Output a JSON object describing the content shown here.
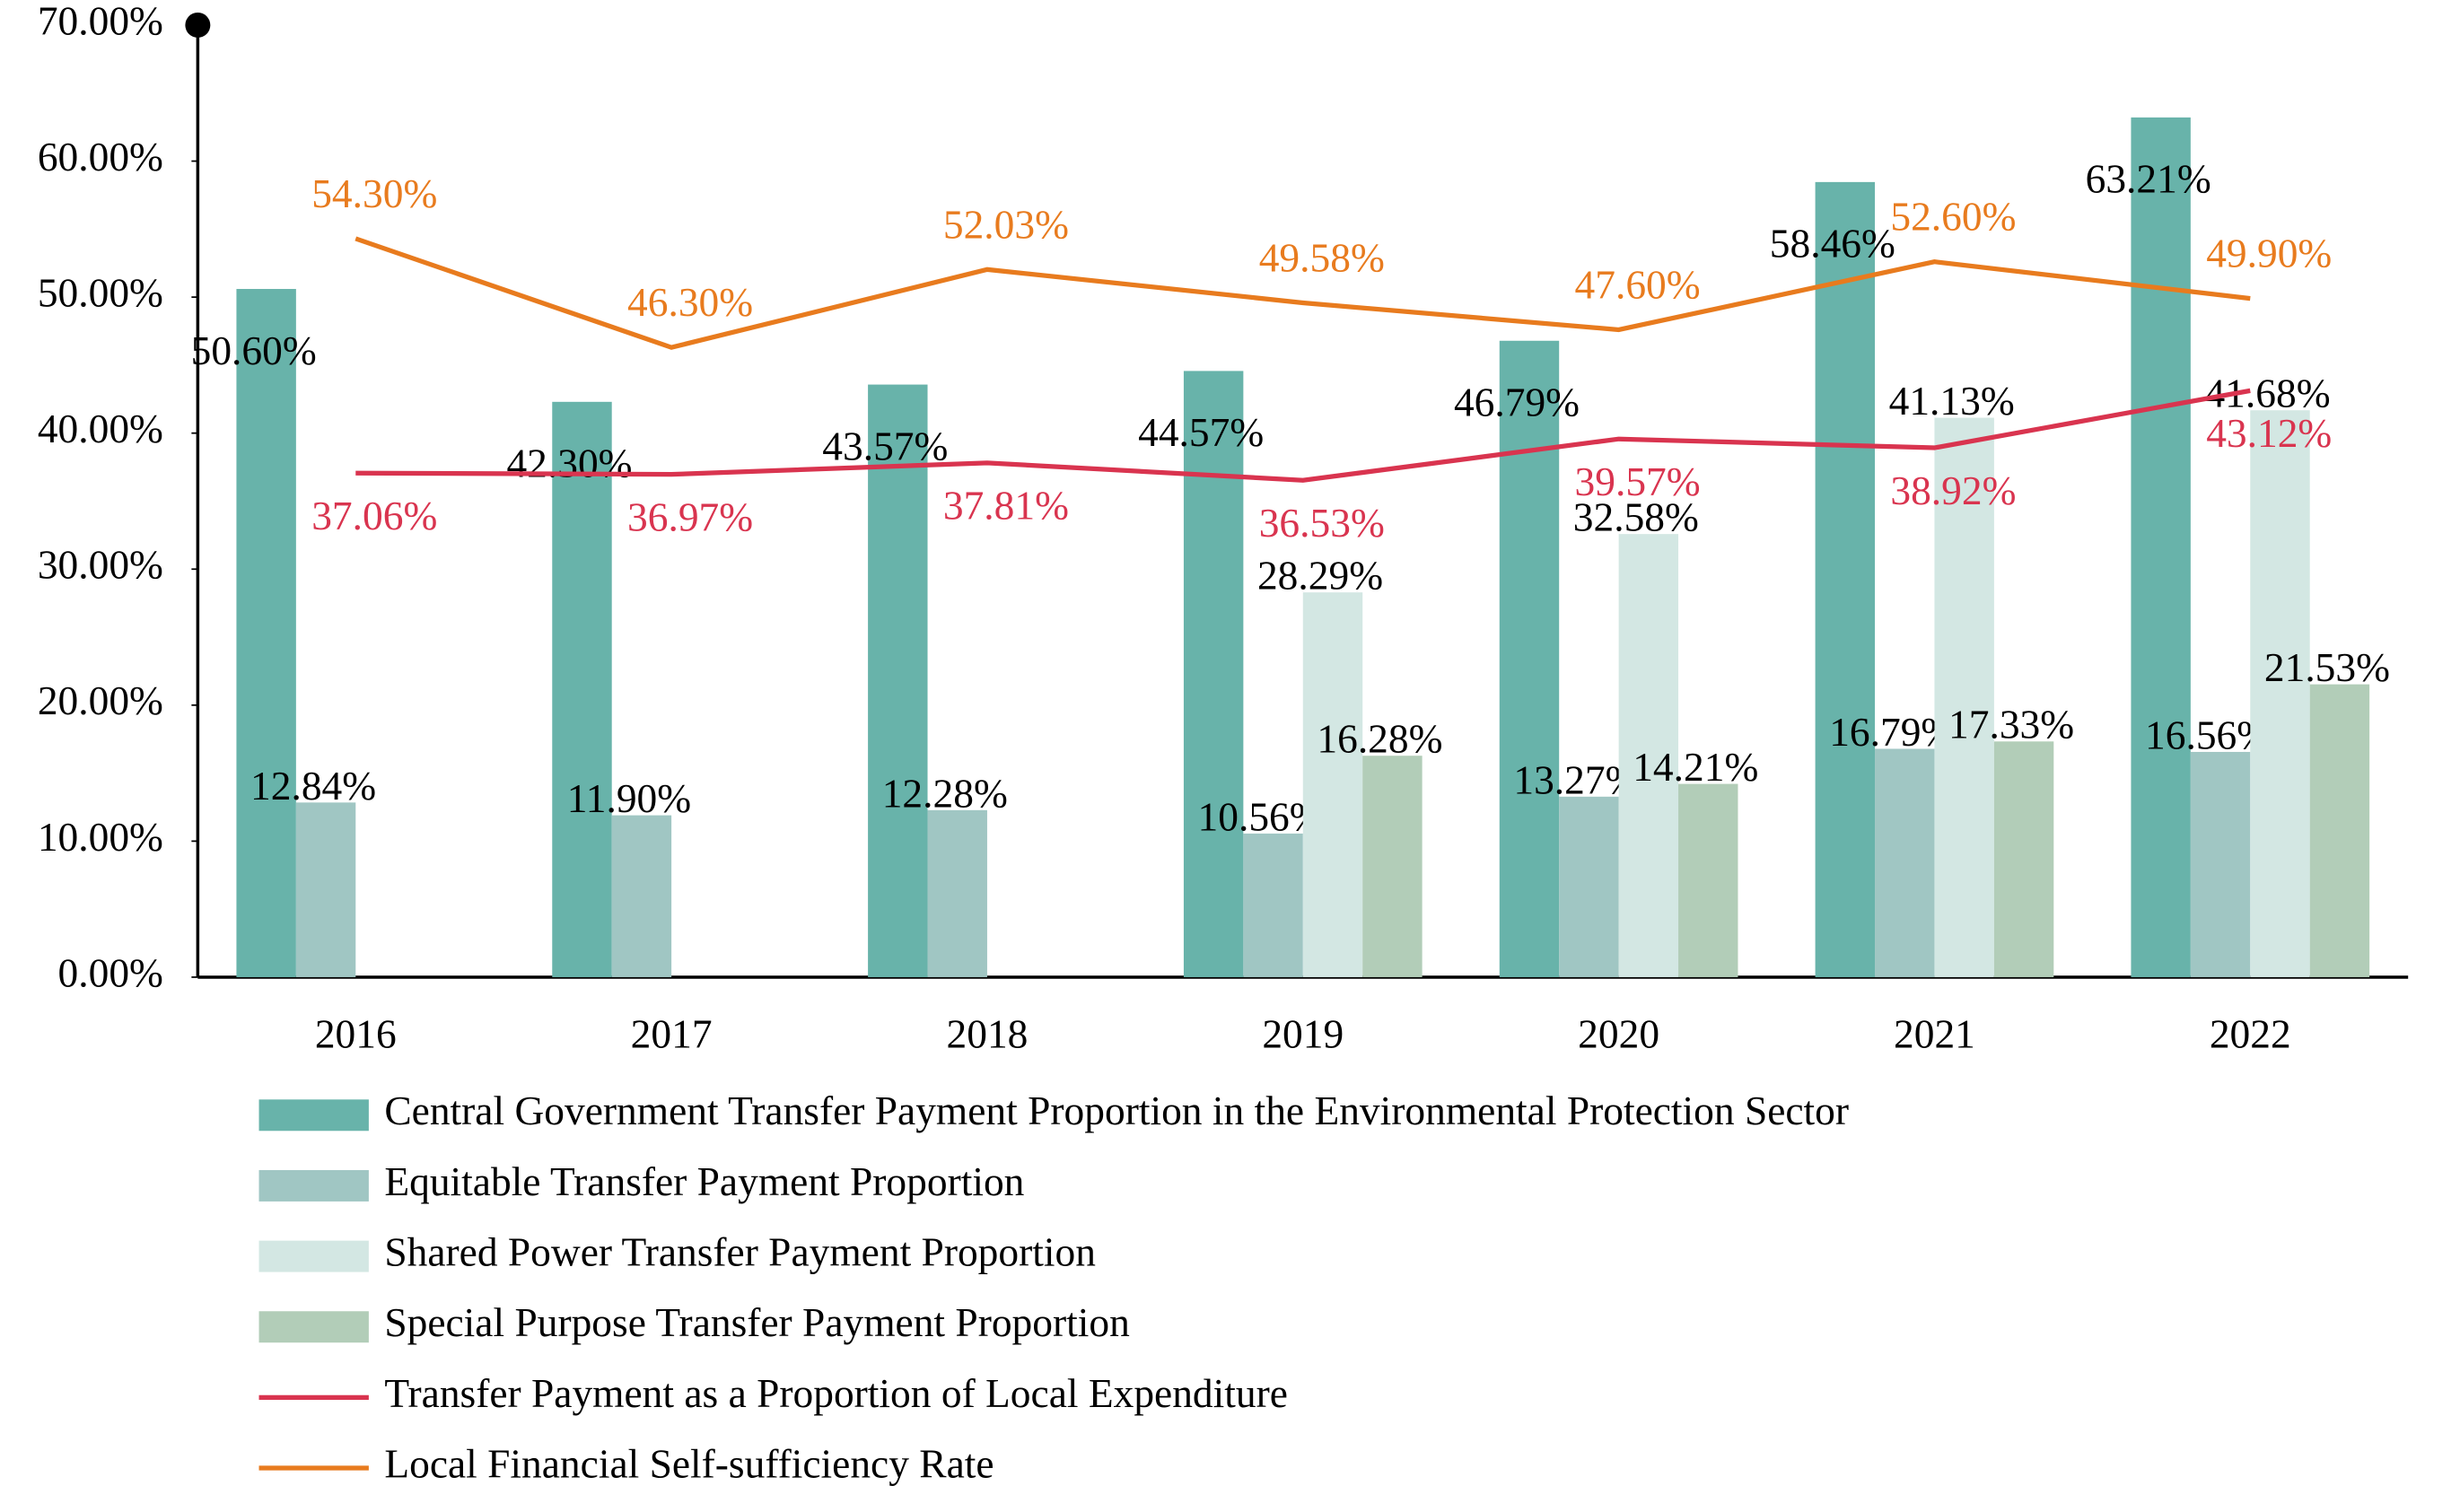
{
  "chart_data": {
    "type": "bar",
    "categories": [
      "2016",
      "2017",
      "2018",
      "2019",
      "2020",
      "2021",
      "2022"
    ],
    "ylim": [
      0,
      70
    ],
    "yticks": [
      {
        "value": 0,
        "label": "0.00%"
      },
      {
        "value": 10,
        "label": "10.00%"
      },
      {
        "value": 20,
        "label": "20.00%"
      },
      {
        "value": 30,
        "label": "30.00%"
      },
      {
        "value": 40,
        "label": "40.00%"
      },
      {
        "value": 50,
        "label": "50.00%"
      },
      {
        "value": 60,
        "label": "60.00%"
      },
      {
        "value": 70,
        "label": "70.00%"
      }
    ],
    "series": [
      {
        "name": "Central Government Transfer Payment Proportion in the Environmental Protection Sector",
        "type": "bar",
        "color": "#68b3aa",
        "values": [
          50.6,
          42.3,
          43.57,
          44.57,
          46.79,
          58.46,
          63.21
        ],
        "value_labels": [
          "50.60%",
          "42.30%",
          "43.57%",
          "44.57%",
          "46.79%",
          "58.46%",
          "63.21%"
        ]
      },
      {
        "name": "Equitable Transfer Payment Proportion",
        "type": "bar",
        "color": "#a0c6c3",
        "values": [
          12.84,
          11.9,
          12.28,
          10.56,
          13.27,
          16.79,
          16.56
        ],
        "value_labels": [
          "12.84%",
          "11.90%",
          "12.28%",
          "10.56%",
          "13.27%",
          "16.79%",
          "16.56%"
        ]
      },
      {
        "name": "Shared Power Transfer Payment Proportion",
        "type": "bar",
        "color": "#d3e7e3",
        "values": [
          null,
          null,
          null,
          28.29,
          32.58,
          41.13,
          41.68
        ],
        "value_labels": [
          null,
          null,
          null,
          "28.29%",
          "32.58%",
          "41.13%",
          "41.68%"
        ]
      },
      {
        "name": "Special Purpose Transfer Payment Proportion",
        "type": "bar",
        "color": "#b2cdb8",
        "values": [
          null,
          null,
          null,
          16.28,
          14.21,
          17.33,
          21.53
        ],
        "value_labels": [
          null,
          null,
          null,
          "16.28%",
          "14.21%",
          "17.33%",
          "21.53%"
        ]
      },
      {
        "name": "Transfer Payment as a Proportion of Local Expenditure",
        "type": "line",
        "color": "#d9344f",
        "values": [
          37.06,
          36.97,
          37.81,
          36.53,
          39.57,
          38.92,
          43.12
        ],
        "value_labels": [
          "37.06%",
          "36.97%",
          "37.81%",
          "36.53%",
          "39.57%",
          "38.92%",
          "43.12%"
        ]
      },
      {
        "name": "Local Financial Self-sufficiency Rate",
        "type": "line",
        "color": "#e87b1e",
        "values": [
          54.3,
          46.3,
          52.03,
          49.58,
          47.6,
          52.6,
          49.9
        ],
        "value_labels": [
          "54.30%",
          "46.30%",
          "52.03%",
          "49.58%",
          "47.60%",
          "52.60%",
          "49.90%"
        ]
      }
    ]
  }
}
